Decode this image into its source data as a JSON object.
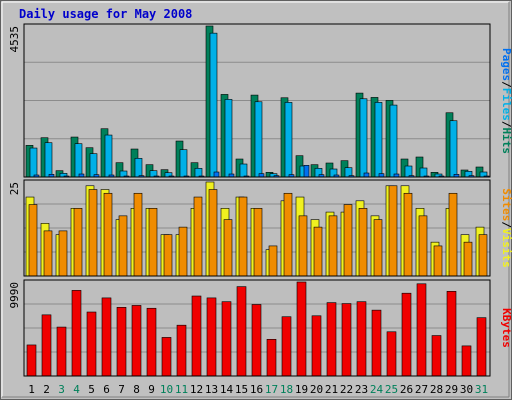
{
  "title": "Daily usage for May 2008",
  "colors": {
    "frame_bg": "#C0C0C0",
    "plot_bg": "#BEBEBE",
    "title": "#0000CC",
    "hits": "#00805A",
    "files": "#00B0E8",
    "pages": "#0070F0",
    "visits": "#F0F020",
    "sites": "#F08C00",
    "kbytes": "#F00000",
    "weekend_label": "#00805A",
    "weekday_label": "#000000"
  },
  "chart_data": [
    {
      "type": "bar",
      "panel": "top",
      "max_label": "4535",
      "ylim": [
        0,
        4535
      ],
      "grid": true,
      "categories": [
        "1",
        "2",
        "3",
        "4",
        "5",
        "6",
        "7",
        "8",
        "9",
        "10",
        "11",
        "12",
        "13",
        "14",
        "15",
        "16",
        "17",
        "18",
        "19",
        "20",
        "21",
        "22",
        "23",
        "24",
        "25",
        "26",
        "27",
        "28",
        "29",
        "30",
        "31"
      ],
      "weekend": [
        false,
        false,
        true,
        true,
        false,
        false,
        false,
        false,
        false,
        true,
        true,
        false,
        false,
        false,
        false,
        false,
        true,
        true,
        false,
        false,
        false,
        false,
        false,
        true,
        true,
        false,
        false,
        false,
        false,
        false,
        true
      ],
      "legend": [
        {
          "label": "Hits",
          "color": "#00805A"
        },
        {
          "label": "Files",
          "color": "#00B0E8"
        },
        {
          "label": "Pages",
          "color": "#0070F0"
        }
      ],
      "series": [
        {
          "name": "Hits",
          "values": [
            950,
            1180,
            190,
            1200,
            880,
            1450,
            430,
            840,
            370,
            220,
            1080,
            430,
            4535,
            2480,
            540,
            2460,
            140,
            2380,
            640,
            370,
            420,
            490,
            2520,
            2390,
            2300,
            540,
            600,
            140,
            1930,
            210,
            300
          ]
        },
        {
          "name": "Files",
          "values": [
            870,
            1030,
            110,
            1000,
            700,
            1260,
            180,
            560,
            190,
            130,
            820,
            260,
            4320,
            2330,
            390,
            2260,
            100,
            2240,
            330,
            260,
            240,
            280,
            2350,
            2240,
            2160,
            330,
            270,
            90,
            1690,
            170,
            150
          ]
        },
        {
          "name": "Pages",
          "values": [
            60,
            80,
            20,
            90,
            70,
            60,
            30,
            40,
            30,
            20,
            30,
            30,
            150,
            90,
            30,
            100,
            40,
            70,
            350,
            70,
            60,
            40,
            120,
            100,
            90,
            40,
            30,
            20,
            80,
            40,
            20
          ]
        }
      ]
    },
    {
      "type": "bar",
      "panel": "middle",
      "max_label": "25",
      "ylim": [
        0,
        25
      ],
      "grid": true,
      "categories": [
        "1",
        "2",
        "3",
        "4",
        "5",
        "6",
        "7",
        "8",
        "9",
        "10",
        "11",
        "12",
        "13",
        "14",
        "15",
        "16",
        "17",
        "18",
        "19",
        "20",
        "21",
        "22",
        "23",
        "24",
        "25",
        "26",
        "27",
        "28",
        "29",
        "30",
        "31"
      ],
      "legend": [
        {
          "label": "Visits",
          "color": "#F0F020"
        },
        {
          "label": "Sites",
          "color": "#F08C00"
        }
      ],
      "series": [
        {
          "name": "Visits",
          "values": [
            21,
            14,
            11,
            18,
            24,
            23,
            15,
            18,
            18,
            11,
            11,
            18,
            25,
            18,
            21,
            18,
            7,
            20,
            21,
            15,
            17,
            17,
            20,
            16,
            24,
            24,
            18,
            9,
            18,
            11,
            13
          ]
        },
        {
          "name": "Sites",
          "values": [
            19,
            12,
            12,
            18,
            23,
            22,
            16,
            22,
            18,
            11,
            13,
            21,
            23,
            15,
            21,
            18,
            8,
            22,
            16,
            13,
            16,
            19,
            18,
            15,
            24,
            22,
            16,
            8,
            22,
            9,
            11
          ]
        }
      ]
    },
    {
      "type": "bar",
      "panel": "bottom",
      "max_label": "9990",
      "ylim": [
        0,
        9990
      ],
      "grid": true,
      "categories": [
        "1",
        "2",
        "3",
        "4",
        "5",
        "6",
        "7",
        "8",
        "9",
        "10",
        "11",
        "12",
        "13",
        "14",
        "15",
        "16",
        "17",
        "18",
        "19",
        "20",
        "21",
        "22",
        "23",
        "24",
        "25",
        "26",
        "27",
        "28",
        "29",
        "30",
        "31"
      ],
      "legend": [
        {
          "label": "KBytes",
          "color": "#F00000"
        }
      ],
      "series": [
        {
          "name": "KBytes",
          "values": [
            3300,
            6500,
            5200,
            9100,
            6800,
            8300,
            7300,
            7500,
            7200,
            4100,
            5400,
            8500,
            8300,
            7900,
            9500,
            7600,
            3900,
            6300,
            9990,
            6400,
            7800,
            7700,
            7900,
            7000,
            4700,
            8800,
            9800,
            4300,
            9000,
            3200,
            6200
          ]
        }
      ]
    }
  ]
}
